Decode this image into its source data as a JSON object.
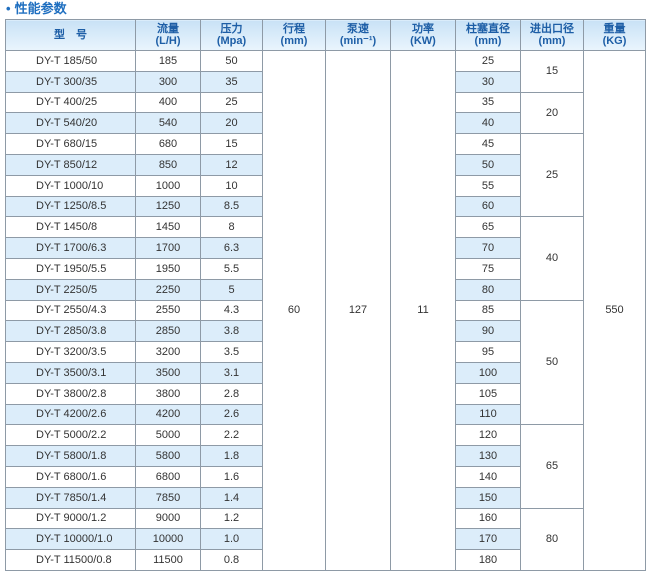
{
  "title": "性能参数",
  "table": {
    "columns": [
      {
        "label": "型　号"
      },
      {
        "label": "流量",
        "unit": "(L/H)"
      },
      {
        "label": "压力",
        "unit": "(Mpa)"
      },
      {
        "label": "行程",
        "unit": "(mm)"
      },
      {
        "label": "泵速",
        "unit": "(min⁻¹)"
      },
      {
        "label": "功率",
        "unit": "(KW)"
      },
      {
        "label": "柱塞直径",
        "unit": "(mm)"
      },
      {
        "label": "进出口径",
        "unit": "(mm)"
      },
      {
        "label": "重量",
        "unit": "(KG)"
      }
    ],
    "stroke": "60",
    "speed": "127",
    "power": "11",
    "weight": "550",
    "groups": [
      {
        "inlet": "15",
        "rows": [
          [
            "DY-T 185/50",
            "185",
            "50",
            "25"
          ],
          [
            "DY-T 300/35",
            "300",
            "35",
            "30"
          ]
        ]
      },
      {
        "inlet": "20",
        "rows": [
          [
            "DY-T 400/25",
            "400",
            "25",
            "35"
          ],
          [
            "DY-T 540/20",
            "540",
            "20",
            "40"
          ]
        ]
      },
      {
        "inlet": "25",
        "rows": [
          [
            "DY-T 680/15",
            "680",
            "15",
            "45"
          ],
          [
            "DY-T 850/12",
            "850",
            "12",
            "50"
          ],
          [
            "DY-T 1000/10",
            "1000",
            "10",
            "55"
          ],
          [
            "DY-T 1250/8.5",
            "1250",
            "8.5",
            "60"
          ]
        ]
      },
      {
        "inlet": "40",
        "rows": [
          [
            "DY-T 1450/8",
            "1450",
            "8",
            "65"
          ],
          [
            "DY-T 1700/6.3",
            "1700",
            "6.3",
            "70"
          ],
          [
            "DY-T 1950/5.5",
            "1950",
            "5.5",
            "75"
          ],
          [
            "DY-T 2250/5",
            "2250",
            "5",
            "80"
          ]
        ]
      },
      {
        "inlet": "50",
        "rows": [
          [
            "DY-T 2550/4.3",
            "2550",
            "4.3",
            "85"
          ],
          [
            "DY-T 2850/3.8",
            "2850",
            "3.8",
            "90"
          ],
          [
            "DY-T 3200/3.5",
            "3200",
            "3.5",
            "95"
          ],
          [
            "DY-T 3500/3.1",
            "3500",
            "3.1",
            "100"
          ],
          [
            "DY-T 3800/2.8",
            "3800",
            "2.8",
            "105"
          ],
          [
            "DY-T 4200/2.6",
            "4200",
            "2.6",
            "110"
          ]
        ]
      },
      {
        "inlet": "65",
        "rows": [
          [
            "DY-T 5000/2.2",
            "5000",
            "2.2",
            "120"
          ],
          [
            "DY-T 5800/1.8",
            "5800",
            "1.8",
            "130"
          ],
          [
            "DY-T 6800/1.6",
            "6800",
            "1.6",
            "140"
          ],
          [
            "DY-T 7850/1.4",
            "7850",
            "1.4",
            "150"
          ]
        ]
      },
      {
        "inlet": "80",
        "rows": [
          [
            "DY-T 9000/1.2",
            "9000",
            "1.2",
            "160"
          ],
          [
            "DY-T 10000/1.0",
            "10000",
            "1.0",
            "170"
          ],
          [
            "DY-T 11500/0.8",
            "11500",
            "0.8",
            "180"
          ]
        ]
      }
    ]
  }
}
